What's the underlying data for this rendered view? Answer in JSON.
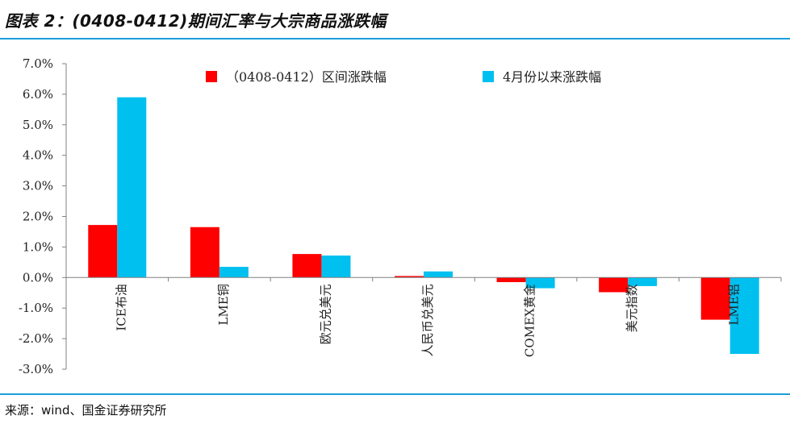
{
  "header": {
    "title": "图表 2：(0408-0412)期间汇率与大宗商品涨跌幅"
  },
  "footer": {
    "source": "来源：wind、国金证券研究所"
  },
  "colors": {
    "series1": "#ff0000",
    "series2": "#00c0f0",
    "rule": "#1a9fd8",
    "axis": "#808080"
  },
  "chart_data": {
    "type": "bar",
    "title": "",
    "xlabel": "",
    "ylabel": "",
    "ylim": [
      -0.03,
      0.07
    ],
    "yticks": [
      0.07,
      0.06,
      0.05,
      0.04,
      0.03,
      0.02,
      0.01,
      0.0,
      -0.01,
      -0.02,
      -0.03
    ],
    "ytick_labels": [
      "7.0%",
      "6.0%",
      "5.0%",
      "4.0%",
      "3.0%",
      "2.0%",
      "1.0%",
      "0.0%",
      "-1.0%",
      "-2.0%",
      "-3.0%"
    ],
    "categories": [
      "ICE布油",
      "LME铜",
      "欧元兑美元",
      "人民币兑美元",
      "COMEX黄金",
      "美元指数",
      "LME铝"
    ],
    "series": [
      {
        "name": "（0408-0412）区间涨跌幅",
        "values": [
          0.0172,
          0.0165,
          0.0077,
          0.0005,
          -0.0015,
          -0.0048,
          -0.0138
        ]
      },
      {
        "name": "4月份以来涨跌幅",
        "values": [
          0.059,
          0.0035,
          0.0072,
          0.002,
          -0.0035,
          -0.0028,
          -0.025
        ]
      }
    ],
    "legend": "top"
  }
}
